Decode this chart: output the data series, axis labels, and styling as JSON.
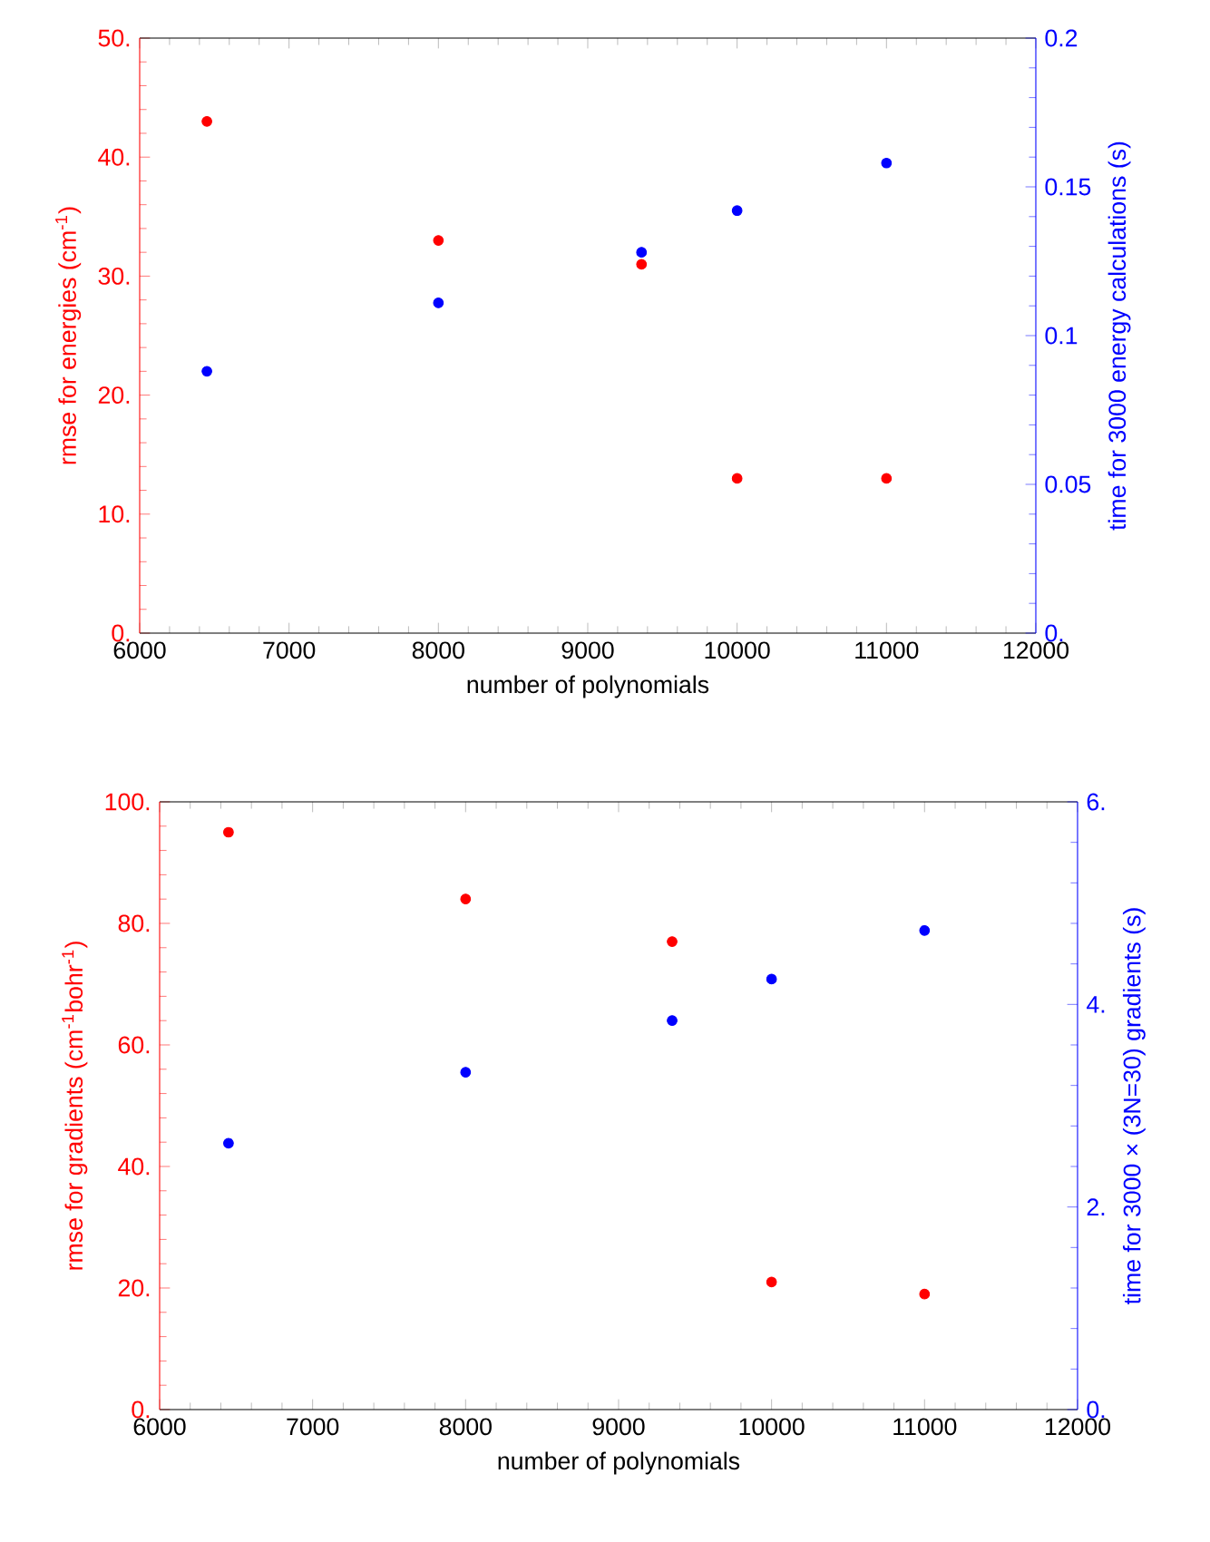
{
  "chart_data": [
    {
      "type": "scatter",
      "xlabel": "number of polynomials",
      "ylabel": "rmse for energies (cm$^{-1}$)",
      "y2label": "time for 3000 energy calculations (s)",
      "marker": "circle",
      "x": [
        6450,
        8000,
        9360,
        10000,
        11000
      ],
      "xlim": [
        6000,
        12000
      ],
      "xticks": [
        6000,
        7000,
        8000,
        9000,
        10000,
        11000,
        12000
      ],
      "ylim": [
        0,
        50
      ],
      "yticks": [
        {
          "value": 0,
          "label": "0."
        },
        {
          "value": 10,
          "label": "10."
        },
        {
          "value": 20,
          "label": "20."
        },
        {
          "value": 30,
          "label": "30."
        },
        {
          "value": 40,
          "label": "40."
        },
        {
          "value": 50,
          "label": "50."
        }
      ],
      "y2lim": [
        0,
        0.2
      ],
      "y2ticks": [
        {
          "value": 0,
          "label": "0."
        },
        0.05,
        0.1,
        0.15,
        0.2
      ],
      "series": [
        {
          "color": "#ff0000",
          "values": [
            43,
            33,
            31,
            13,
            13
          ]
        },
        {
          "color": "#0000ff",
          "axis": "y2",
          "values": [
            0.088,
            0.111,
            0.128,
            0.142,
            0.158
          ]
        }
      ]
    },
    {
      "type": "scatter",
      "xlabel": "number of polynomials",
      "ylabel": "rmse for gradients (cm$^{-1}$bohr$^{-1}$)",
      "y2label": "time for 3000 × (3N=30) gradients (s)",
      "marker": "circle",
      "x": [
        6450,
        8000,
        9350,
        10000,
        11000
      ],
      "xlim": [
        6000,
        12000
      ],
      "xticks": [
        6000,
        7000,
        8000,
        9000,
        10000,
        11000,
        12000
      ],
      "ylim": [
        0,
        100
      ],
      "yticks": [
        {
          "value": 0,
          "label": "0."
        },
        {
          "value": 20,
          "label": "20."
        },
        {
          "value": 40,
          "label": "40."
        },
        {
          "value": 60,
          "label": "60."
        },
        {
          "value": 80,
          "label": "80."
        },
        {
          "value": 100,
          "label": "100."
        }
      ],
      "y2lim": [
        0,
        6
      ],
      "y2ticks": [
        {
          "value": 0,
          "label": "0."
        },
        {
          "value": 2,
          "label": "2."
        },
        {
          "value": 4,
          "label": "4."
        },
        {
          "value": 6,
          "label": "6."
        }
      ],
      "series": [
        {
          "color": "#ff0000",
          "values": [
            95,
            84,
            77,
            21,
            19
          ]
        },
        {
          "color": "#0000ff",
          "axis": "y2",
          "values": [
            2.63,
            3.33,
            3.84,
            4.25,
            4.73
          ]
        }
      ]
    }
  ]
}
